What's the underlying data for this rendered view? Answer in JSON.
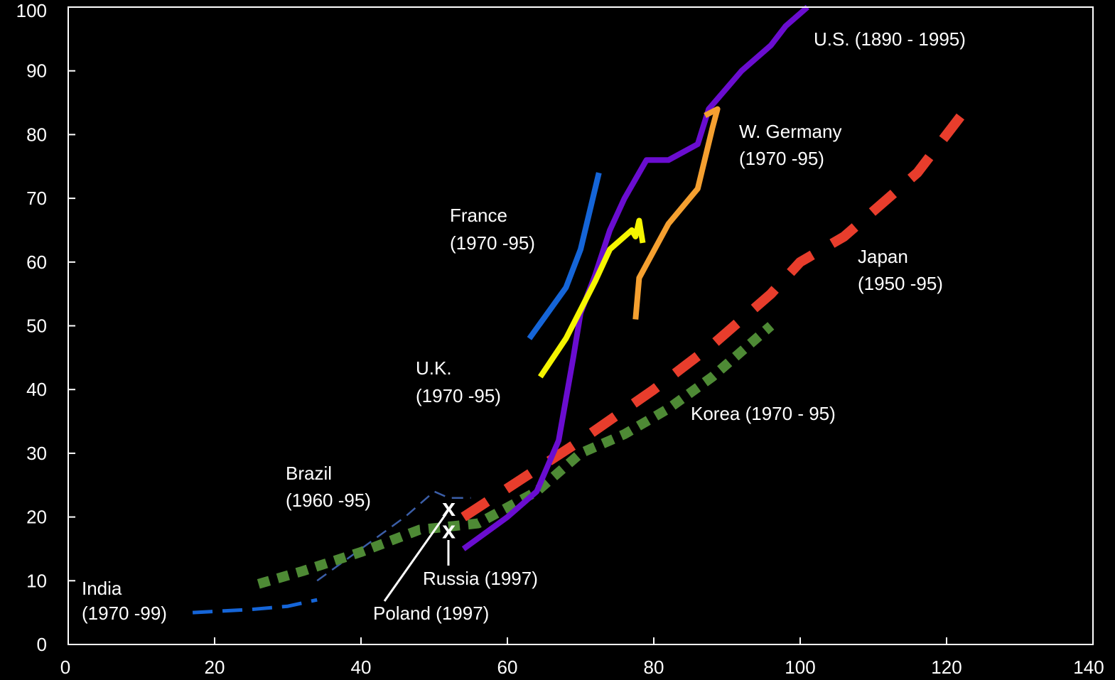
{
  "chart_data": {
    "type": "line",
    "xlim": [
      0,
      140
    ],
    "ylim": [
      0,
      100
    ],
    "x_ticks": [
      "0",
      "20",
      "40",
      "60",
      "80",
      "100",
      "120",
      "140"
    ],
    "y_ticks": [
      "0",
      "10",
      "20",
      "30",
      "40",
      "50",
      "60",
      "70",
      "80",
      "90",
      "100"
    ],
    "grid": false,
    "series": [
      {
        "name": "India (1970 -99)",
        "color": "#1565d8",
        "style": "dashed-thin",
        "points": [
          [
            17,
            5
          ],
          [
            25,
            5.5
          ],
          [
            30,
            6
          ],
          [
            34,
            7
          ]
        ]
      },
      {
        "name": "Brazil (1960 -95)",
        "color": "#3b5ea8",
        "style": "dashed-hair",
        "points": [
          [
            34,
            10
          ],
          [
            40,
            15
          ],
          [
            46,
            20
          ],
          [
            50,
            24
          ],
          [
            52,
            23
          ],
          [
            55,
            23
          ]
        ]
      },
      {
        "name": "Korea (1970 - 95)",
        "color": "#4e8a35",
        "style": "dotted-thick",
        "points": [
          [
            26,
            9.5
          ],
          [
            32,
            11.5
          ],
          [
            40,
            14.5
          ],
          [
            48,
            18
          ],
          [
            56,
            19
          ],
          [
            64,
            24
          ],
          [
            70,
            30
          ],
          [
            76,
            33
          ],
          [
            82,
            37
          ],
          [
            88,
            42
          ],
          [
            92,
            46
          ],
          [
            96,
            50
          ]
        ]
      },
      {
        "name": "Japan (1950 -95)",
        "color": "#e83d2c",
        "style": "dashed-thick",
        "points": [
          [
            54,
            20
          ],
          [
            62,
            26
          ],
          [
            70,
            32
          ],
          [
            80,
            40
          ],
          [
            88,
            47
          ],
          [
            96,
            55
          ],
          [
            100,
            60
          ],
          [
            106,
            64
          ],
          [
            112,
            70
          ],
          [
            116,
            74
          ],
          [
            122,
            83
          ]
        ]
      },
      {
        "name": "U.S. (1890 - 1995)",
        "color": "#6a0dd0",
        "style": "solid",
        "points": [
          [
            54,
            15
          ],
          [
            60,
            20
          ],
          [
            64,
            24
          ],
          [
            67,
            32
          ],
          [
            69,
            45
          ],
          [
            70,
            52
          ],
          [
            72,
            58
          ],
          [
            74,
            65
          ],
          [
            76,
            70
          ],
          [
            79,
            76
          ],
          [
            82,
            76
          ],
          [
            86,
            78.5
          ],
          [
            87.5,
            84
          ],
          [
            92,
            90
          ],
          [
            96,
            94
          ],
          [
            98,
            97
          ],
          [
            101,
            100
          ]
        ]
      },
      {
        "name": "France (1970 -95)",
        "color": "#1565d8",
        "style": "solid",
        "points": [
          [
            63,
            48
          ],
          [
            68,
            56
          ],
          [
            70,
            62
          ],
          [
            72.5,
            74
          ]
        ]
      },
      {
        "name": "U.K. (1970 -95)",
        "color": "#f5f500",
        "style": "solid",
        "points": [
          [
            64.5,
            42
          ],
          [
            68,
            48
          ],
          [
            72,
            57
          ],
          [
            74,
            62
          ],
          [
            76,
            64
          ],
          [
            77,
            65
          ],
          [
            77.5,
            64
          ],
          [
            78,
            66.5
          ],
          [
            78.5,
            63
          ]
        ]
      },
      {
        "name": "W. Germany (1970 -95)",
        "color": "#f5a030",
        "style": "solid",
        "points": [
          [
            77.5,
            51
          ],
          [
            78,
            57.5
          ],
          [
            82,
            66
          ],
          [
            86,
            71.5
          ],
          [
            88,
            81
          ],
          [
            88.7,
            84
          ],
          [
            87,
            83
          ]
        ]
      }
    ],
    "points": [
      {
        "name": "Poland (1997)",
        "x": 52,
        "y": 21.5,
        "marker": "x"
      },
      {
        "name": "Russia (1997)",
        "x": 52,
        "y": 18,
        "marker": "x"
      }
    ],
    "annotations": {
      "us": "U.S. (1890  - 1995)",
      "germany_1": "W. Germany",
      "germany_2": "(1970  -95)",
      "france_1": "France",
      "france_2": "(1970  -95)",
      "japan_1": "Japan",
      "japan_2": "(1950  -95)",
      "uk_1": "U.K.",
      "uk_2": "(1970  -95)",
      "korea": "Korea (1970   - 95)",
      "brazil_1": "Brazil",
      "brazil_2": "(1960  -95)",
      "india_1": "India",
      "india_2": "(1970  -99)",
      "russia": "Russia (1997)",
      "poland": "Poland (1997)",
      "marker_symbol": "x"
    }
  }
}
